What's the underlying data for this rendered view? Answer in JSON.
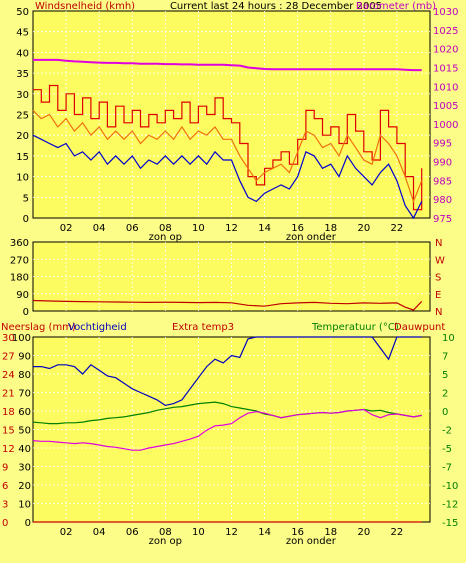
{
  "page": {
    "title": "Current last 24 hours : 28 December 2005",
    "background": "#fcfc88",
    "plot_background": "#fcfc60"
  },
  "colors": {
    "wind_max": "#e00000",
    "wind_avg": "#f07010",
    "wind_min": "#0000d0",
    "barometer": "#e000e0",
    "direction": "#c00000",
    "rain": "#d00000",
    "humidity": "#0000c0",
    "temperature": "#008000",
    "dewpoint": "#e000e0",
    "label_red": "#c00000",
    "label_blue": "#0000c0",
    "label_green": "#008000",
    "label_magenta": "#c000c0"
  },
  "chart_data": [
    {
      "type": "line",
      "panel": "wind_baro",
      "title": "Current last 24 hours : 28 December 2005",
      "ylabel": "Windsnelheid (kmh)",
      "y2label": "Barometer (mb)",
      "xticks": [
        "02",
        "04",
        "06",
        "08",
        "10",
        "12",
        "14",
        "16",
        "18",
        "20",
        "22"
      ],
      "xmarkers": [
        "zon op",
        "zon onder"
      ],
      "ylim": [
        0,
        50
      ],
      "y2lim": [
        975,
        1030
      ],
      "yticks": [
        "0",
        "5",
        "10",
        "15",
        "20",
        "25",
        "30",
        "35",
        "40",
        "45",
        "50"
      ],
      "y2ticks": [
        "975",
        "980",
        "985",
        "990",
        "995",
        "1000",
        "1005",
        "1010",
        "1015",
        "1020",
        "1025",
        "1030"
      ],
      "x": [
        0,
        0.5,
        1,
        1.5,
        2,
        2.5,
        3,
        3.5,
        4,
        4.5,
        5,
        5.5,
        6,
        6.5,
        7,
        7.5,
        8,
        8.5,
        9,
        9.5,
        10,
        10.5,
        11,
        11.5,
        12,
        12.5,
        13,
        13.5,
        14,
        14.5,
        15,
        15.5,
        16,
        16.5,
        17,
        17.5,
        18,
        18.5,
        19,
        19.5,
        20,
        20.5,
        21,
        21.5,
        22,
        22.5,
        23,
        23.5
      ],
      "series": [
        {
          "name": "Windsnelheid (kmh)",
          "axis": "left",
          "color_key": "wind_max",
          "values": [
            31,
            28,
            32,
            26,
            30,
            25,
            29,
            24,
            28,
            22,
            27,
            23,
            26,
            22,
            25,
            23,
            26,
            24,
            28,
            23,
            27,
            25,
            29,
            24,
            23,
            18,
            10,
            8,
            12,
            14,
            16,
            13,
            19,
            26,
            24,
            20,
            22,
            18,
            25,
            21,
            16,
            14,
            26,
            22,
            18,
            10,
            2,
            12
          ]
        },
        {
          "name": "",
          "axis": "left",
          "color_key": "wind_avg",
          "values": [
            26,
            24,
            25,
            22,
            24,
            21,
            23,
            20,
            22,
            19,
            21,
            19,
            21,
            18,
            20,
            19,
            21,
            19,
            22,
            19,
            21,
            20,
            22,
            19,
            19,
            15,
            12,
            9,
            11,
            12,
            13,
            11,
            16,
            21,
            20,
            17,
            18,
            15,
            20,
            17,
            14,
            13,
            20,
            18,
            15,
            10,
            4,
            9
          ]
        },
        {
          "name": "",
          "axis": "left",
          "color_key": "wind_min",
          "values": [
            20,
            19,
            18,
            17,
            18,
            15,
            16,
            14,
            16,
            13,
            15,
            13,
            15,
            12,
            14,
            13,
            15,
            13,
            15,
            13,
            15,
            13,
            16,
            14,
            14,
            9,
            5,
            4,
            6,
            7,
            8,
            7,
            10,
            16,
            15,
            12,
            13,
            10,
            15,
            12,
            10,
            8,
            11,
            13,
            9,
            3,
            0,
            4
          ]
        },
        {
          "name": "Barometer (mb)",
          "axis": "right",
          "color_key": "barometer",
          "values": [
            1017,
            1017,
            1017,
            1017,
            1016.8,
            1016.6,
            1016.5,
            1016.4,
            1016.3,
            1016.2,
            1016.2,
            1016.1,
            1016.1,
            1016,
            1016,
            1016,
            1015.9,
            1015.9,
            1015.8,
            1015.8,
            1015.7,
            1015.7,
            1015.7,
            1015.7,
            1015.6,
            1015.5,
            1015,
            1014.8,
            1014.6,
            1014.5,
            1014.5,
            1014.5,
            1014.5,
            1014.5,
            1014.5,
            1014.5,
            1014.5,
            1014.5,
            1014.5,
            1014.5,
            1014.5,
            1014.5,
            1014.5,
            1014.5,
            1014.5,
            1014.4,
            1014.3,
            1014.3
          ]
        }
      ]
    },
    {
      "type": "line",
      "panel": "wind_direction",
      "ylim": [
        0,
        360
      ],
      "yticks": [
        "0",
        "90",
        "180",
        "270",
        "360"
      ],
      "y2ticks": [
        "N",
        "E",
        "S",
        "W",
        "N"
      ],
      "x": [
        0,
        1,
        2,
        3,
        4,
        5,
        6,
        7,
        8,
        9,
        10,
        11,
        12,
        13,
        14,
        15,
        16,
        17,
        18,
        19,
        20,
        21,
        22,
        22.5,
        23,
        23.5
      ],
      "series": [
        {
          "name": "",
          "color_key": "direction",
          "values": [
            55,
            52,
            50,
            49,
            48,
            47,
            46,
            45,
            46,
            45,
            44,
            45,
            43,
            30,
            25,
            38,
            42,
            45,
            40,
            38,
            42,
            40,
            42,
            20,
            5,
            50
          ]
        }
      ]
    },
    {
      "type": "line",
      "panel": "rain_humidity_temp",
      "ylabel": "Neerslag (mm)",
      "ylabel2": "Vochtigheid",
      "ylabel3": "Extra temp3",
      "y2label": "Temperatuur (°C)",
      "y2label2": "Dauwpunt",
      "xticks": [
        "02",
        "04",
        "06",
        "08",
        "10",
        "12",
        "14",
        "16",
        "18",
        "20",
        "22"
      ],
      "xmarkers": [
        "zon op",
        "zon onder"
      ],
      "rain_ylim": [
        0,
        30
      ],
      "rain_ticks": [
        "0",
        "3",
        "6",
        "9",
        "12",
        "15",
        "18",
        "21",
        "24",
        "27",
        "30"
      ],
      "humidity_ylim": [
        0,
        100
      ],
      "humidity_ticks": [
        "0",
        "10",
        "20",
        "30",
        "40",
        "50",
        "60",
        "70",
        "80",
        "90",
        "100"
      ],
      "temp_ylim": [
        -15,
        10
      ],
      "temp_ticks": [
        "-15",
        "-12",
        "-10",
        "-7",
        "-5",
        "-2",
        "0",
        "2",
        "5",
        "7",
        "10"
      ],
      "x": [
        0,
        0.5,
        1,
        1.5,
        2,
        2.5,
        3,
        3.5,
        4,
        4.5,
        5,
        5.5,
        6,
        6.5,
        7,
        7.5,
        8,
        8.5,
        9,
        9.5,
        10,
        10.5,
        11,
        11.5,
        12,
        12.5,
        13,
        13.5,
        14,
        14.5,
        15,
        15.5,
        16,
        16.5,
        17,
        17.5,
        18,
        18.5,
        19,
        19.5,
        20,
        20.5,
        21,
        21.5,
        22,
        22.5,
        23,
        23.5
      ],
      "series": [
        {
          "name": "Neerslag (mm)",
          "axis": "rain",
          "color_key": "rain",
          "values": [
            0,
            0,
            0,
            0,
            0,
            0,
            0,
            0,
            0,
            0,
            0,
            0,
            0,
            0,
            0,
            0,
            0,
            0,
            0,
            0,
            0,
            0,
            0,
            0,
            0,
            0,
            0,
            0,
            0,
            0,
            0,
            0,
            0,
            0,
            0,
            0,
            0,
            0,
            0,
            0,
            0,
            0,
            0,
            0,
            0,
            0,
            0,
            0
          ]
        },
        {
          "name": "Vochtigheid",
          "axis": "humidity",
          "color_key": "humidity",
          "values": [
            84,
            84,
            83,
            85,
            85,
            84,
            80,
            85,
            82,
            79,
            78,
            75,
            72,
            70,
            68,
            66,
            63,
            64,
            66,
            72,
            78,
            84,
            88,
            86,
            90,
            89,
            99,
            100,
            100,
            100,
            100,
            100,
            100,
            100,
            100,
            100,
            100,
            100,
            100,
            100,
            100,
            100,
            94,
            88,
            100,
            100,
            100,
            100
          ]
        },
        {
          "name": "Temperatuur (°C)",
          "axis": "temp",
          "color_key": "temperature",
          "values": [
            -1.5,
            -1.6,
            -1.7,
            -1.7,
            -1.6,
            -1.6,
            -1.5,
            -1.3,
            -1.2,
            -1,
            -0.9,
            -0.8,
            -0.6,
            -0.4,
            -0.2,
            0.1,
            0.3,
            0.5,
            0.6,
            0.8,
            1,
            1.1,
            1.2,
            1,
            0.6,
            0.4,
            0.2,
            0,
            -0.4,
            -0.6,
            -0.9,
            -0.7,
            -0.5,
            -0.4,
            -0.3,
            -0.2,
            -0.3,
            -0.2,
            0,
            0.1,
            0.2,
            0,
            0.1,
            -0.2,
            -0.4,
            -0.6,
            -0.8,
            -0.6
          ]
        },
        {
          "name": "Dauwpunt",
          "axis": "temp",
          "color_key": "dewpoint",
          "values": [
            -4,
            -4.1,
            -4.1,
            -4.2,
            -4.3,
            -4.4,
            -4.3,
            -4.4,
            -4.6,
            -4.8,
            -4.9,
            -5.1,
            -5.3,
            -5.3,
            -5,
            -4.8,
            -4.6,
            -4.4,
            -4.1,
            -3.8,
            -3.4,
            -2.6,
            -2,
            -1.9,
            -1.7,
            -0.9,
            -0.3,
            -0.1,
            -0.3,
            -0.6,
            -0.9,
            -0.7,
            -0.5,
            -0.4,
            -0.3,
            -0.2,
            -0.3,
            -0.2,
            0,
            0.1,
            0.2,
            -0.5,
            -0.9,
            -0.5,
            -0.4,
            -0.6,
            -0.8,
            -0.6
          ]
        }
      ]
    }
  ]
}
